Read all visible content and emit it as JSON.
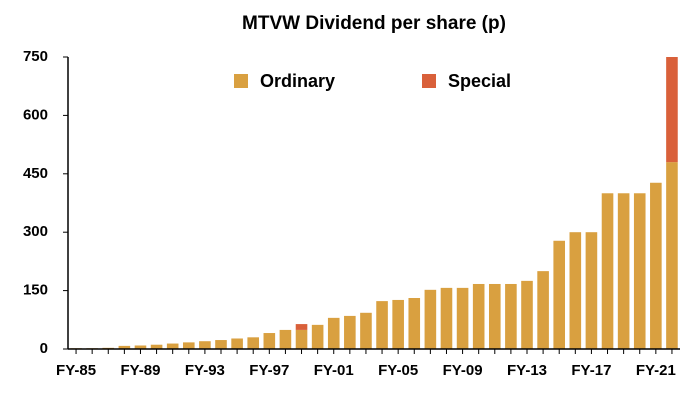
{
  "chart_data": {
    "type": "stacked_bar",
    "title": "MTVW Dividend per share (p)",
    "categories": [
      "FY-85",
      null,
      null,
      null,
      "FY-89",
      null,
      null,
      null,
      "FY-93",
      null,
      null,
      null,
      "FY-97",
      null,
      null,
      null,
      "FY-01",
      null,
      null,
      null,
      "FY-05",
      null,
      null,
      null,
      "FY-09",
      null,
      null,
      null,
      "FY-13",
      null,
      null,
      null,
      "FY-17",
      null,
      null,
      null,
      "FY-21",
      null
    ],
    "series": [
      {
        "name": "Ordinary",
        "color": "#d9a040",
        "values": [
          2,
          2,
          3,
          8,
          9,
          11,
          14,
          17,
          20,
          23,
          27,
          30,
          41,
          49,
          49,
          62,
          80,
          85,
          93,
          123,
          126,
          131,
          152,
          157,
          157,
          167,
          167,
          167,
          175,
          200,
          278,
          300,
          300,
          400,
          400,
          400,
          427,
          480
        ]
      },
      {
        "name": "Special",
        "color": "#d9603a",
        "values": [
          0,
          0,
          0,
          0,
          0,
          0,
          0,
          0,
          0,
          0,
          0,
          0,
          0,
          0,
          15,
          0,
          0,
          0,
          0,
          0,
          0,
          0,
          0,
          0,
          0,
          0,
          0,
          0,
          0,
          0,
          0,
          0,
          0,
          0,
          0,
          0,
          0,
          270
        ]
      }
    ],
    "ylim": [
      0,
      750
    ],
    "yticks": [
      0,
      150,
      300,
      450,
      600,
      750
    ],
    "legend": "top"
  }
}
